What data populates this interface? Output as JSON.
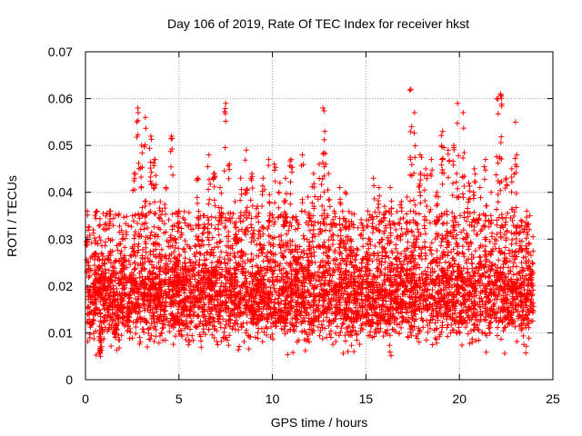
{
  "chart_data": {
    "type": "scatter",
    "title": "Day 106 of 2019, Rate Of TEC Index for receiver hkst",
    "xlabel": "GPS time / hours",
    "ylabel": "ROTI / TECUs",
    "xlim": [
      0,
      25
    ],
    "ylim": [
      0,
      0.07
    ],
    "xticks": [
      0,
      5,
      10,
      15,
      20,
      25
    ],
    "xtick_labels": [
      "0",
      "5",
      "10",
      "15",
      "20",
      "25"
    ],
    "yticks": [
      0,
      0.01,
      0.02,
      0.03,
      0.04,
      0.05,
      0.06,
      0.07
    ],
    "ytick_labels": [
      "0",
      "0.01",
      "0.02",
      "0.03",
      "0.04",
      "0.05",
      "0.06",
      "0.07"
    ],
    "grid": true,
    "marker": "+",
    "series": [
      {
        "color": "#ff0000",
        "points": [
          [
            0.1,
            0.036
          ],
          [
            0.3,
            0.012
          ],
          [
            0.5,
            0.027
          ],
          [
            0.8,
            0.005
          ],
          [
            1.0,
            0.022
          ],
          [
            1.3,
            0.036
          ],
          [
            1.6,
            0.009
          ],
          [
            2.0,
            0.031
          ],
          [
            2.3,
            0.018
          ],
          [
            2.6,
            0.044
          ],
          [
            2.8,
            0.058
          ],
          [
            3.0,
            0.05
          ],
          [
            3.2,
            0.056
          ],
          [
            3.5,
            0.052
          ],
          [
            3.7,
            0.047
          ],
          [
            4.0,
            0.038
          ],
          [
            4.3,
            0.041
          ],
          [
            4.6,
            0.052
          ],
          [
            4.8,
            0.03
          ],
          [
            5.0,
            0.036
          ],
          [
            5.3,
            0.025
          ],
          [
            5.6,
            0.033
          ],
          [
            6.0,
            0.043
          ],
          [
            6.3,
            0.035
          ],
          [
            6.6,
            0.048
          ],
          [
            6.9,
            0.044
          ],
          [
            7.2,
            0.041
          ],
          [
            7.5,
            0.059
          ],
          [
            7.7,
            0.046
          ],
          [
            8.0,
            0.038
          ],
          [
            8.3,
            0.043
          ],
          [
            8.6,
            0.049
          ],
          [
            8.9,
            0.044
          ],
          [
            9.2,
            0.037
          ],
          [
            9.5,
            0.043
          ],
          [
            9.8,
            0.047
          ],
          [
            10.1,
            0.046
          ],
          [
            10.4,
            0.042
          ],
          [
            10.7,
            0.043
          ],
          [
            11.0,
            0.047
          ],
          [
            11.3,
            0.034
          ],
          [
            11.6,
            0.048
          ],
          [
            11.9,
            0.039
          ],
          [
            12.2,
            0.044
          ],
          [
            12.5,
            0.046
          ],
          [
            12.7,
            0.058
          ],
          [
            12.8,
            0.053
          ],
          [
            13.0,
            0.044
          ],
          [
            13.3,
            0.036
          ],
          [
            13.6,
            0.041
          ],
          [
            13.9,
            0.04
          ],
          [
            14.2,
            0.03
          ],
          [
            14.5,
            0.028
          ],
          [
            14.8,
            0.033
          ],
          [
            15.1,
            0.036
          ],
          [
            15.4,
            0.043
          ],
          [
            15.7,
            0.041
          ],
          [
            16.0,
            0.037
          ],
          [
            16.3,
            0.041
          ],
          [
            16.6,
            0.032
          ],
          [
            16.9,
            0.038
          ],
          [
            17.2,
            0.039
          ],
          [
            17.4,
            0.062
          ],
          [
            17.6,
            0.057
          ],
          [
            17.9,
            0.048
          ],
          [
            18.2,
            0.045
          ],
          [
            18.5,
            0.047
          ],
          [
            18.8,
            0.04
          ],
          [
            19.1,
            0.053
          ],
          [
            19.4,
            0.049
          ],
          [
            19.7,
            0.05
          ],
          [
            19.9,
            0.059
          ],
          [
            20.2,
            0.057
          ],
          [
            20.5,
            0.042
          ],
          [
            20.8,
            0.045
          ],
          [
            21.1,
            0.041
          ],
          [
            21.4,
            0.047
          ],
          [
            21.7,
            0.04
          ],
          [
            22.0,
            0.06
          ],
          [
            22.2,
            0.061
          ],
          [
            22.5,
            0.043
          ],
          [
            22.8,
            0.045
          ],
          [
            23.0,
            0.055
          ],
          [
            23.3,
            0.034
          ],
          [
            23.6,
            0.036
          ],
          [
            23.9,
            0.025
          ]
        ]
      }
    ]
  }
}
